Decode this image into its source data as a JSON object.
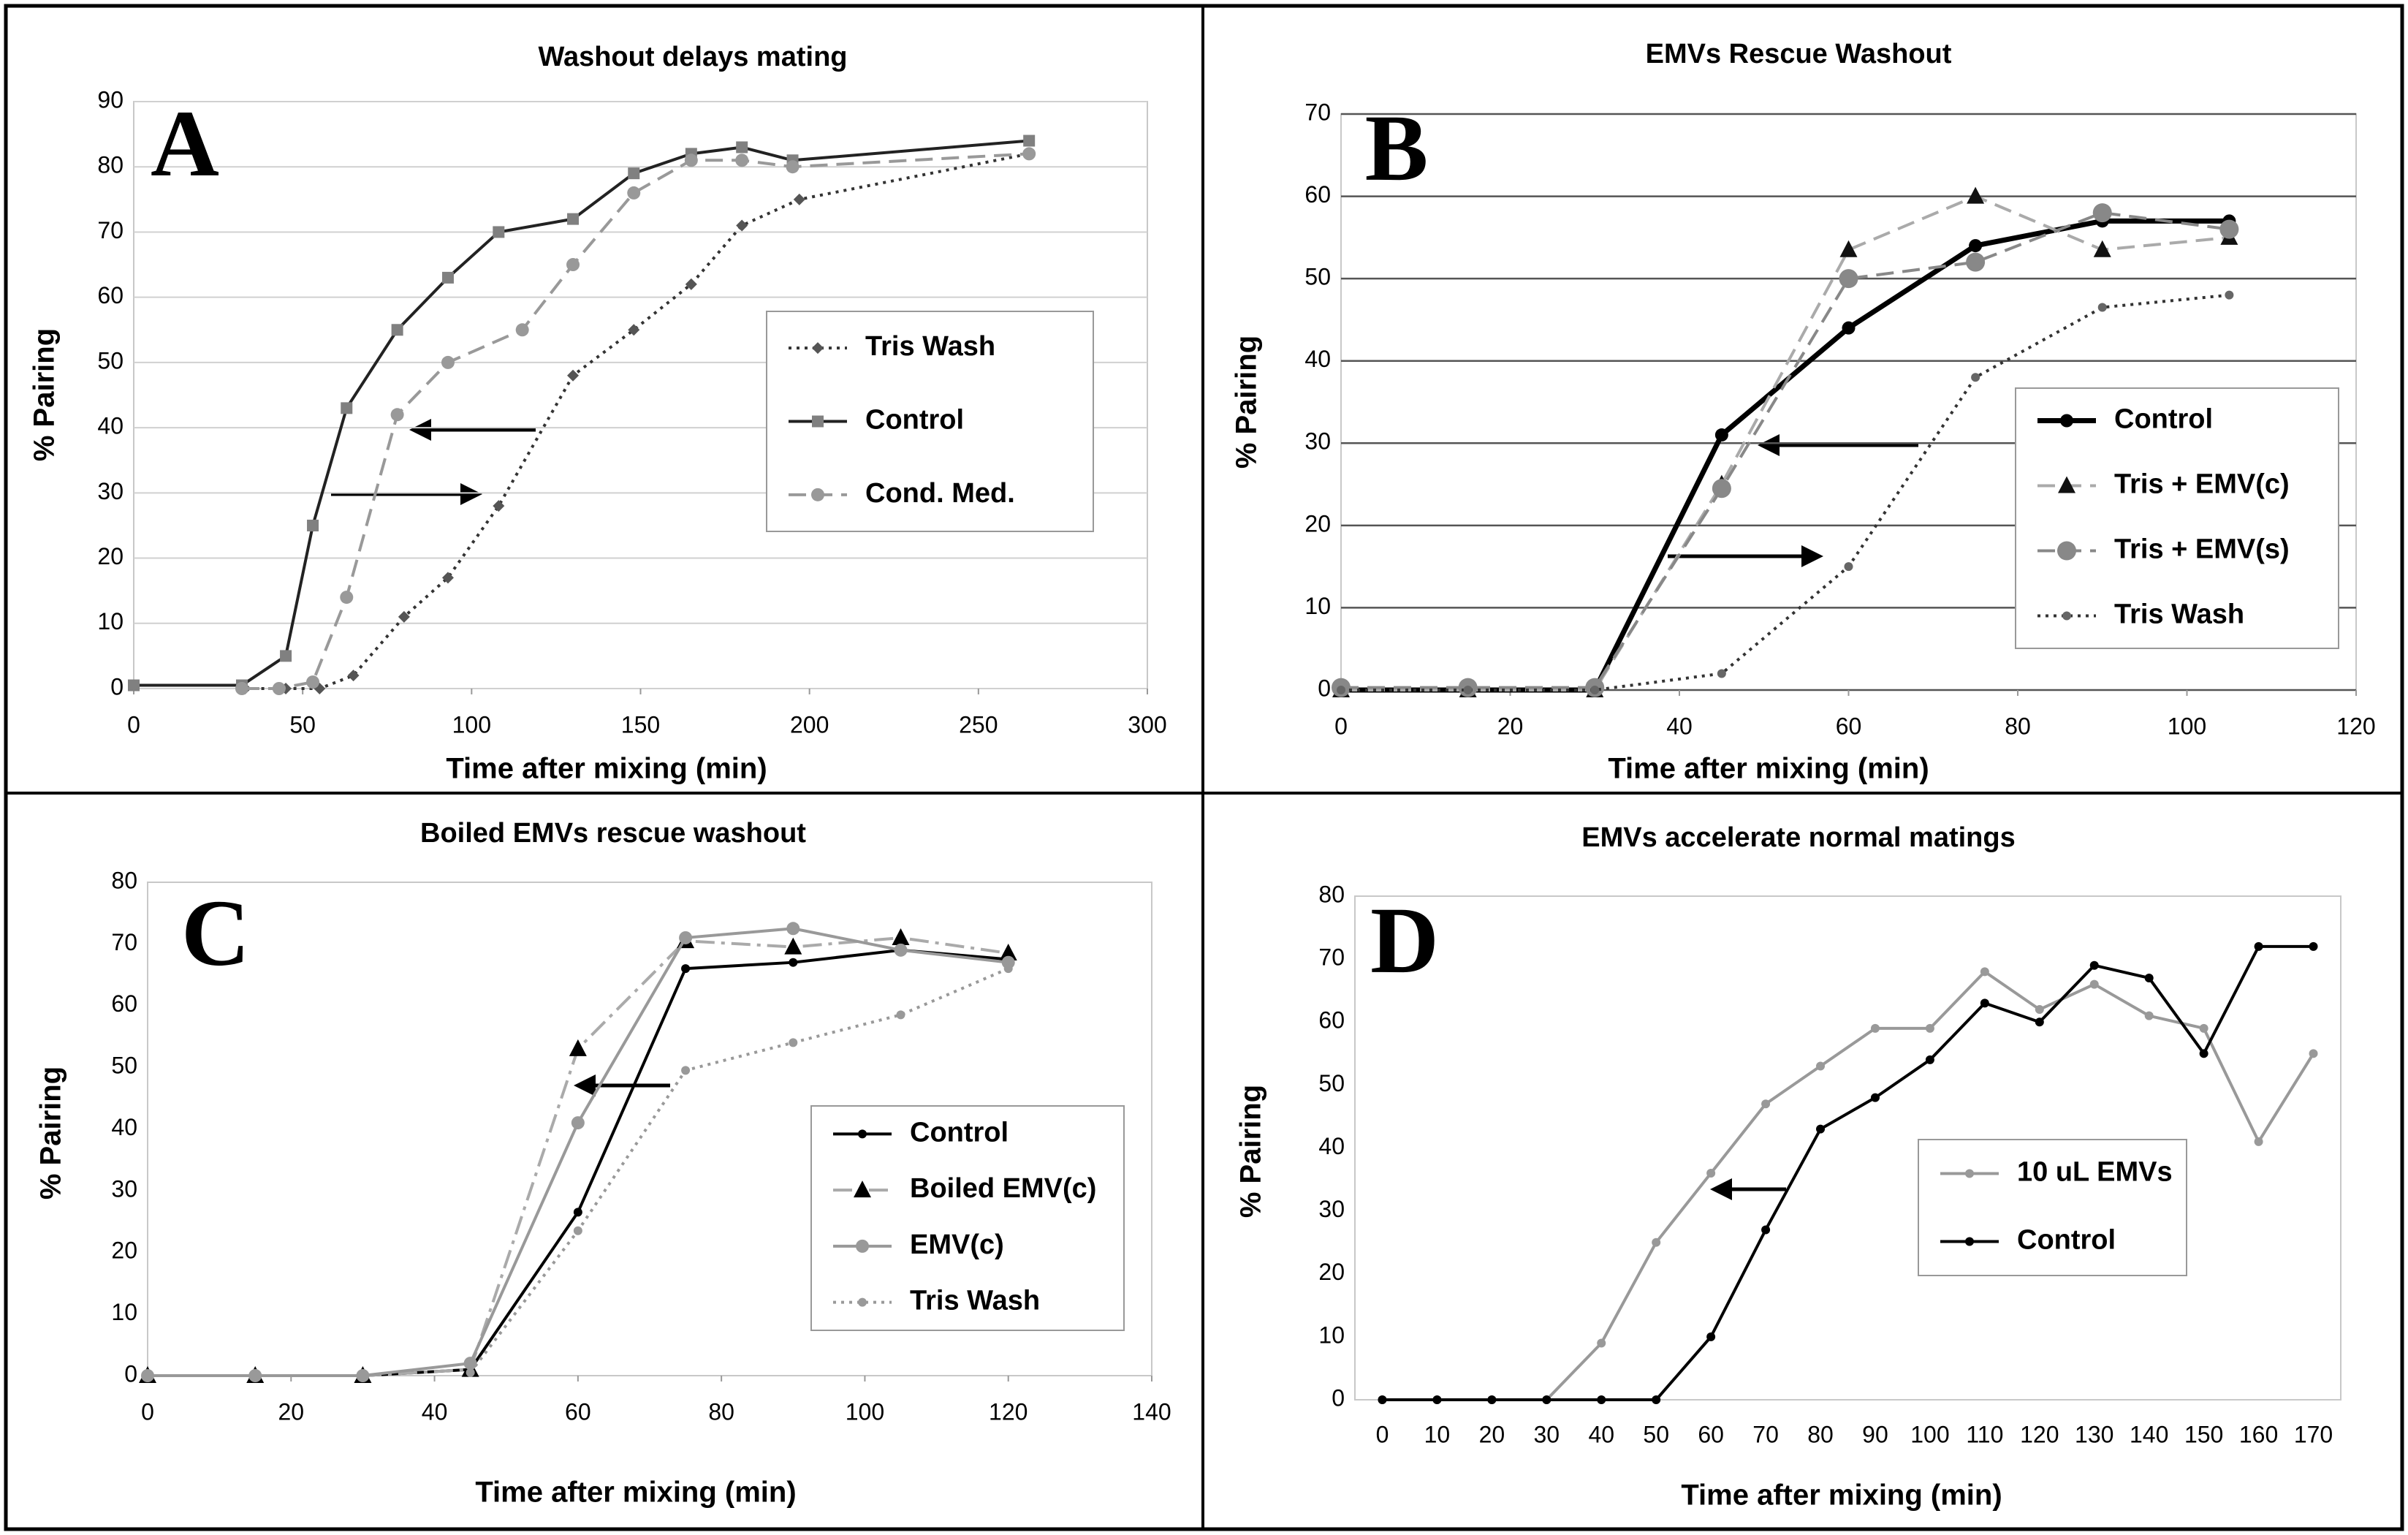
{
  "chart_data": [
    {
      "type": "line",
      "title": "Washout delays mating",
      "annotation": "A",
      "xlabel": "Time after mixing (min)",
      "ylabel": "% Pairing",
      "xlim": [
        0,
        300
      ],
      "xticks": [
        0,
        50,
        100,
        150,
        200,
        250,
        300
      ],
      "ylim": [
        0,
        90
      ],
      "yticks": [
        0,
        10,
        20,
        30,
        40,
        50,
        60,
        70,
        80,
        90
      ],
      "grid": true,
      "series": [
        {
          "name": "Tris Wash",
          "color": "#333333",
          "marker_color": "#555555",
          "line_style": "dotted",
          "marker": "diamond",
          "x": [
            33,
            45,
            55,
            65,
            80,
            93,
            108,
            130,
            148,
            165,
            180,
            197,
            265
          ],
          "values": [
            0,
            0,
            0,
            2,
            11,
            17,
            28,
            48,
            55,
            62,
            71,
            75,
            82
          ]
        },
        {
          "name": "Control",
          "color": "#222222",
          "marker_color": "#808080",
          "line_style": "solid",
          "marker": "square",
          "x": [
            0,
            32,
            45,
            53,
            63,
            78,
            93,
            108,
            130,
            148,
            165,
            180,
            195,
            265
          ],
          "values": [
            0.5,
            0.5,
            5,
            25,
            43,
            55,
            63,
            70,
            72,
            79,
            82,
            83,
            81,
            84
          ]
        },
        {
          "name": "Cond. Med.",
          "color": "#999999",
          "marker_color": "#999999",
          "line_style": "dashed",
          "marker": "circle",
          "x": [
            32,
            43,
            53,
            63,
            78,
            93,
            115,
            130,
            148,
            165,
            180,
            195,
            265
          ],
          "values": [
            0,
            0,
            1,
            14,
            42,
            50,
            55,
            65,
            76,
            81,
            81,
            80,
            82
          ]
        }
      ]
    },
    {
      "type": "line",
      "title": "EMVs Rescue Washout",
      "annotation": "B",
      "xlabel": "Time after mixing (min)",
      "ylabel": "% Pairing",
      "xlim": [
        0,
        120
      ],
      "xticks": [
        0,
        20,
        40,
        60,
        80,
        100,
        120
      ],
      "ylim": [
        0,
        70
      ],
      "yticks": [
        0,
        10,
        20,
        30,
        40,
        50,
        60,
        70
      ],
      "grid": true,
      "series": [
        {
          "name": "Control",
          "color": "#000000",
          "marker_color": "#000000",
          "line_style": "bold",
          "marker": "circle",
          "x": [
            0,
            15,
            30,
            45,
            60,
            75,
            90,
            105
          ],
          "values": [
            0,
            0,
            0,
            31,
            44,
            54,
            57,
            57
          ]
        },
        {
          "name": "Tris + EMV(c)",
          "color": "#aaaaaa",
          "marker_color": "#111111",
          "line_style": "dashed",
          "marker": "triangle",
          "x": [
            0,
            15,
            30,
            45,
            60,
            75,
            90,
            105
          ],
          "values": [
            0,
            0,
            0,
            25,
            53.5,
            60,
            53.5,
            55
          ]
        },
        {
          "name": "Tris + EMV(s)",
          "color": "#888888",
          "marker_color": "#888888",
          "line_style": "dashed",
          "marker": "bigcircle",
          "x": [
            0,
            15,
            30,
            45,
            60,
            75,
            90,
            105
          ],
          "values": [
            0.3,
            0.3,
            0.3,
            24.5,
            50,
            52,
            58,
            56
          ]
        },
        {
          "name": "Tris Wash",
          "color": "#333333",
          "marker_color": "#666666",
          "line_style": "dotted",
          "marker": "smallcircle",
          "x": [
            0,
            15,
            30,
            45,
            60,
            75,
            90,
            105
          ],
          "values": [
            0,
            0,
            0,
            2,
            15,
            38,
            46.5,
            48
          ]
        }
      ]
    },
    {
      "type": "line",
      "title": "Boiled EMVs rescue washout",
      "annotation": "C",
      "xlabel": "Time after mixing (min)",
      "ylabel": "% Pairing",
      "xlim": [
        0,
        140
      ],
      "xticks": [
        0,
        20,
        40,
        60,
        80,
        100,
        120,
        140
      ],
      "ylim": [
        0,
        80
      ],
      "yticks": [
        0,
        10,
        20,
        30,
        40,
        50,
        60,
        70,
        80
      ],
      "grid": false,
      "series": [
        {
          "name": "Control",
          "color": "#000000",
          "marker_color": "#000000",
          "line_style": "solid",
          "marker": "smallcircle",
          "x": [
            0,
            15,
            30,
            45,
            60,
            75,
            90,
            105,
            120
          ],
          "values": [
            0,
            0,
            0,
            1,
            26.5,
            66,
            67,
            69,
            67.5
          ]
        },
        {
          "name": "Boiled EMV(c)",
          "color": "#aaaaaa",
          "marker_color": "#000000",
          "line_style": "dashdot",
          "marker": "triangle",
          "x": [
            0,
            15,
            30,
            45,
            60,
            75,
            90,
            105,
            120
          ],
          "values": [
            0,
            0,
            0,
            1,
            53,
            70.5,
            69.5,
            71,
            68.5
          ]
        },
        {
          "name": "EMV(c)",
          "color": "#999999",
          "marker_color": "#999999",
          "line_style": "solid",
          "marker": "circle",
          "x": [
            0,
            15,
            30,
            45,
            60,
            75,
            90,
            105,
            120
          ],
          "values": [
            0,
            0,
            0,
            2,
            41,
            71,
            72.5,
            69,
            67
          ]
        },
        {
          "name": "Tris Wash",
          "color": "#999999",
          "marker_color": "#999999",
          "line_style": "dotted",
          "marker": "smallcircle",
          "x": [
            45,
            60,
            75,
            90,
            105,
            120
          ],
          "values": [
            0.5,
            23.5,
            49.5,
            54,
            58.5,
            66
          ]
        }
      ]
    },
    {
      "type": "line",
      "title": "EMVs accelerate normal matings",
      "annotation": "D",
      "xlabel": "Time after mixing (min)",
      "ylabel": "% Pairing",
      "categories": [
        "0",
        "10",
        "20",
        "30",
        "40",
        "50",
        "60",
        "70",
        "80",
        "90",
        "100",
        "110",
        "120",
        "130",
        "140",
        "150",
        "160",
        "170"
      ],
      "ylim": [
        0,
        80
      ],
      "yticks": [
        0,
        10,
        20,
        30,
        40,
        50,
        60,
        70,
        80
      ],
      "grid": false,
      "series": [
        {
          "name": "10 uL EMVs",
          "color": "#999999",
          "marker_color": "#999999",
          "line_style": "solid",
          "marker": "smallcircle",
          "values": [
            0,
            0,
            0,
            0,
            9,
            25,
            36,
            47,
            53,
            59,
            59,
            68,
            62,
            66,
            61,
            59,
            41,
            55
          ]
        },
        {
          "name": "Control",
          "color": "#000000",
          "marker_color": "#000000",
          "line_style": "solid",
          "marker": "smallcircle",
          "values": [
            0,
            0,
            0,
            0,
            0,
            0,
            10,
            27,
            43,
            48,
            54,
            63,
            60,
            69,
            67,
            55,
            72,
            72
          ]
        }
      ]
    }
  ]
}
